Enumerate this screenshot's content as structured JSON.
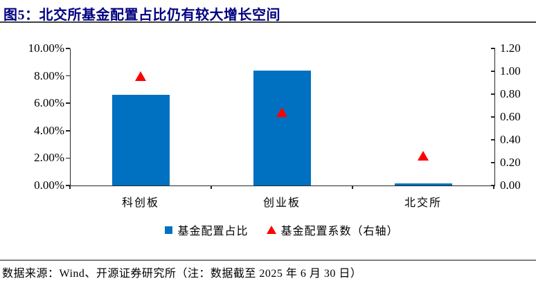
{
  "title": "图5：北交所基金配置占比仍有较大增长空间",
  "source_note": "数据来源：Wind、开源证券研究所（注：数据截至 2025 年 6 月 30 日）",
  "colors": {
    "bar": "#0070C0",
    "marker": "#FF0000",
    "axis": "#262626",
    "title_text": "#000080",
    "title_rule": "#3F3F3F",
    "footer_rule": "#7F7F7F"
  },
  "legend_items": [
    {
      "swatch": "blue-square",
      "label": "基金配置占比"
    },
    {
      "swatch": "red-triangle",
      "label": "基金配置系数（右轴）"
    }
  ],
  "chart_data": {
    "type": "bar",
    "categories": [
      "科创板",
      "创业板",
      "北交所"
    ],
    "series": [
      {
        "name": "基金配置占比",
        "type": "bar",
        "axis": "left",
        "unit": "%",
        "values": [
          6.6,
          8.4,
          0.15
        ]
      },
      {
        "name": "基金配置系数（右轴）",
        "type": "scatter",
        "marker": "triangle",
        "axis": "right",
        "values": [
          0.96,
          0.64,
          0.26
        ]
      }
    ],
    "left_axis": {
      "min": 0,
      "max": 10,
      "step": 2,
      "unit": "%",
      "tick_labels": [
        "10.00%",
        "8.00%",
        "6.00%",
        "4.00%",
        "2.00%",
        "0.00%"
      ]
    },
    "right_axis": {
      "min": 0,
      "max": 1.2,
      "step": 0.2,
      "tick_labels": [
        "1.20",
        "1.00",
        "0.80",
        "0.60",
        "0.40",
        "0.20",
        "0.00"
      ]
    },
    "grid": false,
    "legend_position": "bottom"
  }
}
